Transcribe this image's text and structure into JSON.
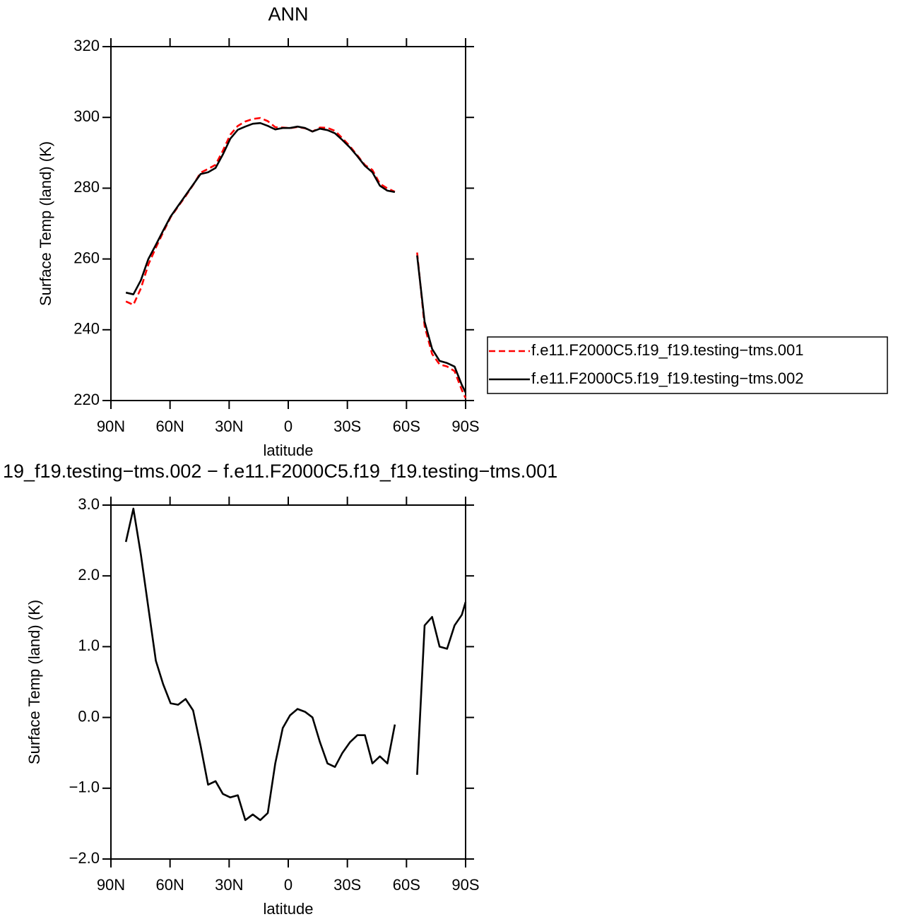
{
  "chart_data": [
    {
      "type": "line",
      "title": "ANN",
      "xlabel": "latitude",
      "ylabel": "Surface Temp (land) (K)",
      "x": [
        82.4,
        78.6,
        74.8,
        71,
        67.2,
        63.5,
        59.7,
        55.9,
        52.1,
        48.3,
        44.5,
        40.7,
        36.9,
        33.2,
        29.4,
        25.6,
        21.8,
        18,
        14.2,
        10.4,
        6.6,
        2.8,
        -0.9,
        -4.7,
        -8.5,
        -12.3,
        -16.1,
        -19.9,
        -23.7,
        -27.5,
        -31.3,
        -35.1,
        -38.9,
        -42.7,
        -46.5,
        -50.3,
        -54.1,
        -60,
        -65.4,
        -69.2,
        -73,
        -76.8,
        -80.6,
        -84.4,
        -88.1,
        -90
      ],
      "xlim": [
        90,
        -90
      ],
      "xticks": [
        {
          "value": 90,
          "label": "90N"
        },
        {
          "value": 60,
          "label": "60N"
        },
        {
          "value": 30,
          "label": "30N"
        },
        0,
        {
          "value": -30,
          "label": "30S"
        },
        {
          "value": -60,
          "label": "60S"
        },
        {
          "value": -90,
          "label": "90S"
        }
      ],
      "ylim": [
        220,
        320
      ],
      "yticks": [
        220,
        240,
        260,
        280,
        300,
        320
      ],
      "legend": "right",
      "series": [
        {
          "name": "f.e11.F2000C5.f19_f19.testing−tms.001",
          "color": "#ff0000",
          "linestyle": "dashed",
          "values": [
            248.0,
            247.05,
            251.7,
            258.45,
            263.2,
            267.53,
            271.8,
            274.82,
            277.74,
            280.9,
            284.4,
            285.45,
            286.6,
            290.58,
            295.13,
            297.6,
            298.85,
            299.57,
            299.85,
            298.95,
            297.25,
            297.15,
            296.97,
            297.28,
            296.92,
            296.0,
            297.15,
            297.05,
            296.2,
            294.1,
            291.85,
            289.25,
            286.55,
            285.15,
            281.25,
            279.95,
            279.0,
            null,
            261.81,
            241.0,
            233.18,
            230.2,
            229.63,
            228.3,
            222.95,
            220.67
          ]
        },
        {
          "name": "f.e11.F2000C5.f19_f19.testing−tms.002",
          "color": "#000000",
          "linestyle": "solid",
          "values": [
            250.5,
            250.0,
            254.0,
            260.0,
            264.0,
            268.0,
            272.0,
            275.0,
            278.0,
            281.0,
            284.0,
            284.5,
            285.7,
            289.5,
            294.0,
            296.5,
            297.4,
            298.2,
            298.4,
            297.6,
            296.6,
            297.0,
            297.0,
            297.4,
            297.0,
            296.0,
            296.8,
            296.4,
            295.5,
            293.6,
            291.5,
            289.0,
            286.3,
            284.5,
            280.7,
            279.3,
            278.9,
            null,
            261.0,
            242.3,
            234.6,
            231.2,
            230.6,
            229.6,
            224.4,
            222.3
          ]
        }
      ]
    },
    {
      "type": "line",
      "title": "19_f19.testing−tms.002 − f.e11.F2000C5.f19_f19.testing−tms.001",
      "xlabel": "latitude",
      "ylabel": "Surface Temp (land) (K)",
      "x": [
        82.4,
        78.6,
        74.8,
        71,
        67.2,
        63.5,
        59.7,
        55.9,
        52.1,
        48.3,
        44.5,
        40.7,
        36.9,
        33.2,
        29.4,
        25.6,
        21.8,
        18,
        14.2,
        10.4,
        6.6,
        2.8,
        -0.9,
        -4.7,
        -8.5,
        -12.3,
        -16.1,
        -19.9,
        -23.7,
        -27.5,
        -31.3,
        -35.1,
        -38.9,
        -42.7,
        -46.5,
        -50.3,
        -54.1,
        -60,
        -65.4,
        -69.2,
        -73,
        -76.8,
        -80.6,
        -84.4,
        -88.1,
        -90
      ],
      "xlim": [
        90,
        -90
      ],
      "xticks": [
        {
          "value": 90,
          "label": "90N"
        },
        {
          "value": 60,
          "label": "60N"
        },
        {
          "value": 30,
          "label": "30N"
        },
        0,
        {
          "value": -30,
          "label": "30S"
        },
        {
          "value": -60,
          "label": "60S"
        },
        {
          "value": -90,
          "label": "90S"
        }
      ],
      "ylim": [
        -2,
        3
      ],
      "yticks": [
        {
          "value": -2,
          "label": "−2.0"
        },
        {
          "value": -1,
          "label": "−1.0"
        },
        {
          "value": 0,
          "label": "0.0"
        },
        {
          "value": 1,
          "label": "1.0"
        },
        {
          "value": 2,
          "label": "2.0"
        },
        {
          "value": 3,
          "label": "3.0"
        }
      ],
      "series": [
        {
          "color": "#000000",
          "linestyle": "solid",
          "values": [
            2.48,
            2.95,
            2.3,
            1.55,
            0.8,
            0.47,
            0.2,
            0.18,
            0.26,
            0.1,
            -0.4,
            -0.95,
            -0.9,
            -1.08,
            -1.13,
            -1.1,
            -1.45,
            -1.37,
            -1.45,
            -1.35,
            -0.65,
            -0.15,
            0.03,
            0.12,
            0.08,
            0.0,
            -0.35,
            -0.65,
            -0.7,
            -0.5,
            -0.35,
            -0.25,
            -0.25,
            -0.65,
            -0.55,
            -0.65,
            -0.1,
            null,
            -0.81,
            1.3,
            1.42,
            1.0,
            0.97,
            1.3,
            1.45,
            1.63
          ]
        }
      ]
    }
  ]
}
